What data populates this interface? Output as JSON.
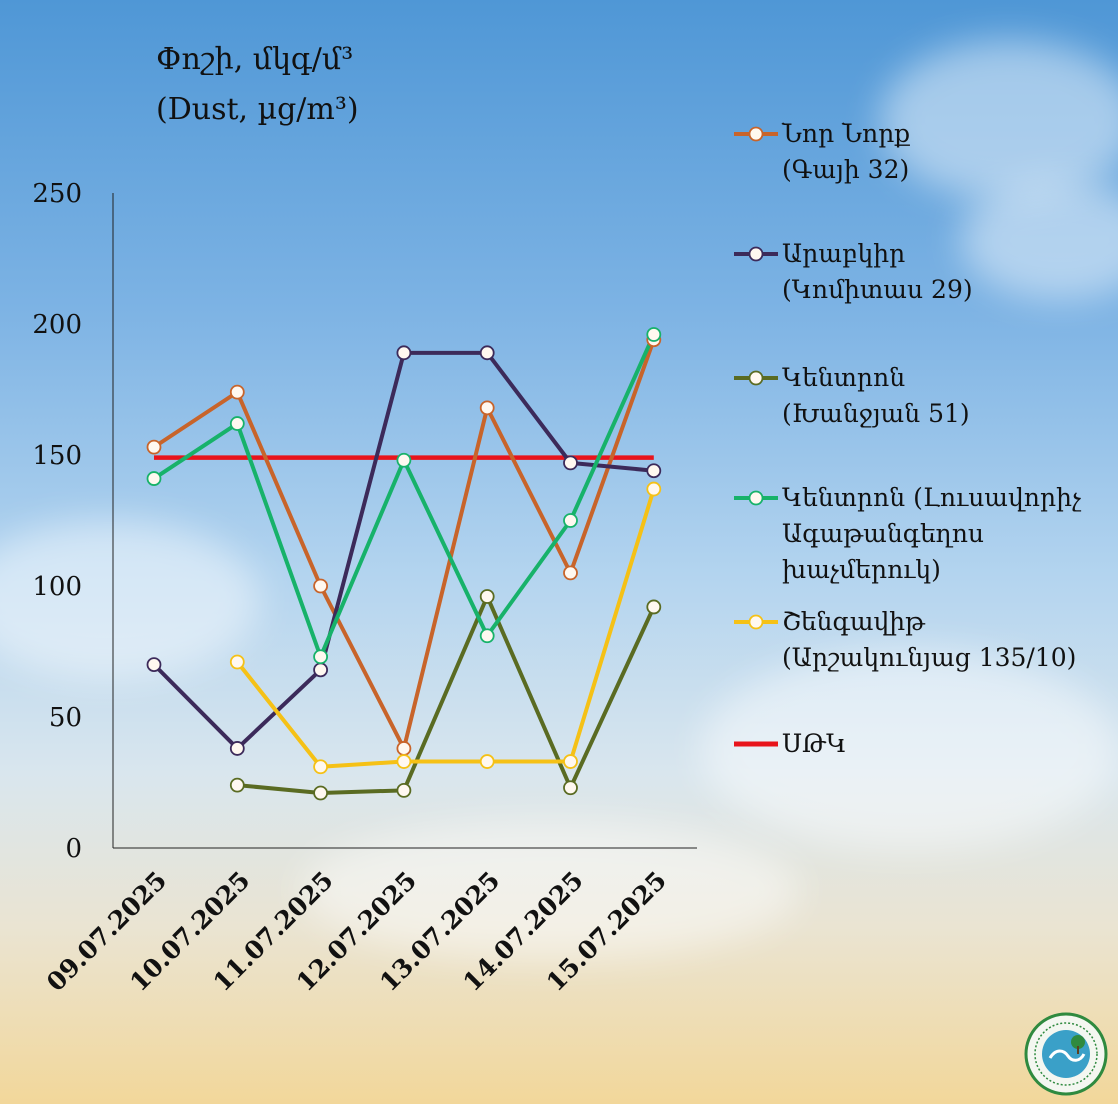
{
  "title_line1": "Փոշի, մկգ/մ³",
  "title_line2": "(Dust, µg/m³)",
  "legend": [
    {
      "label": "Նոր Նորք\n(Գայի 32)",
      "color": "#c8642a",
      "type": "marker-line"
    },
    {
      "label": "Արաբկիր\n(Կոմիտաս 29)",
      "color": "#3c2a5a",
      "type": "marker-line"
    },
    {
      "label": "Կենտրոն\n(Խանջյան 51)",
      "color": "#5a6b22",
      "type": "marker-line"
    },
    {
      "label": "Կենտրոն (Լուսավորիչ\nԱգաթանգեղոս\nխաչմերուկ)",
      "color": "#17b26a",
      "type": "marker-line"
    },
    {
      "label": "Շենգավիթ\n(Արշակունյաց 135/10)",
      "color": "#f5c116",
      "type": "marker-line"
    },
    {
      "label": "ՍԹԿ",
      "color": "#e8141b",
      "type": "line"
    }
  ],
  "logo": {
    "name": "ministry-emblem-icon",
    "color": "#2f8a3f"
  },
  "chart_data": {
    "type": "line",
    "x": [
      "09.07.2025",
      "10.07.2025",
      "11.07.2025",
      "12.07.2025",
      "13.07.2025",
      "14.07.2025",
      "15.07.2025"
    ],
    "yticks": [
      "0",
      "50",
      "100",
      "150",
      "200",
      "250"
    ],
    "ylim": [
      0,
      250
    ],
    "grid": false,
    "legend_position": "right",
    "series": [
      {
        "name": "Նոր Նորք (Գայի 32)",
        "color": "#c8642a",
        "values": [
          153,
          174,
          100,
          38,
          168,
          105,
          194
        ]
      },
      {
        "name": "Արաբկիր (Կոմիտաս 29)",
        "color": "#3c2a5a",
        "values": [
          70,
          38,
          68,
          189,
          189,
          147,
          144
        ]
      },
      {
        "name": "Կենտրոն (Խանջյան 51)",
        "color": "#5a6b22",
        "values": [
          null,
          24,
          21,
          22,
          96,
          23,
          92
        ]
      },
      {
        "name": "Կենտրոն (Լուսավորիչ Ագաթանգեղոս խաչմերուկ)",
        "color": "#17b26a",
        "values": [
          141,
          162,
          73,
          148,
          81,
          125,
          196
        ]
      },
      {
        "name": "Շենգավիթ (Արշակունյաց 135/10)",
        "color": "#f5c116",
        "values": [
          null,
          71,
          31,
          33,
          33,
          33,
          137
        ]
      }
    ],
    "reference_line": {
      "name": "ՍԹԿ",
      "color": "#e8141b",
      "value": 149
    }
  }
}
